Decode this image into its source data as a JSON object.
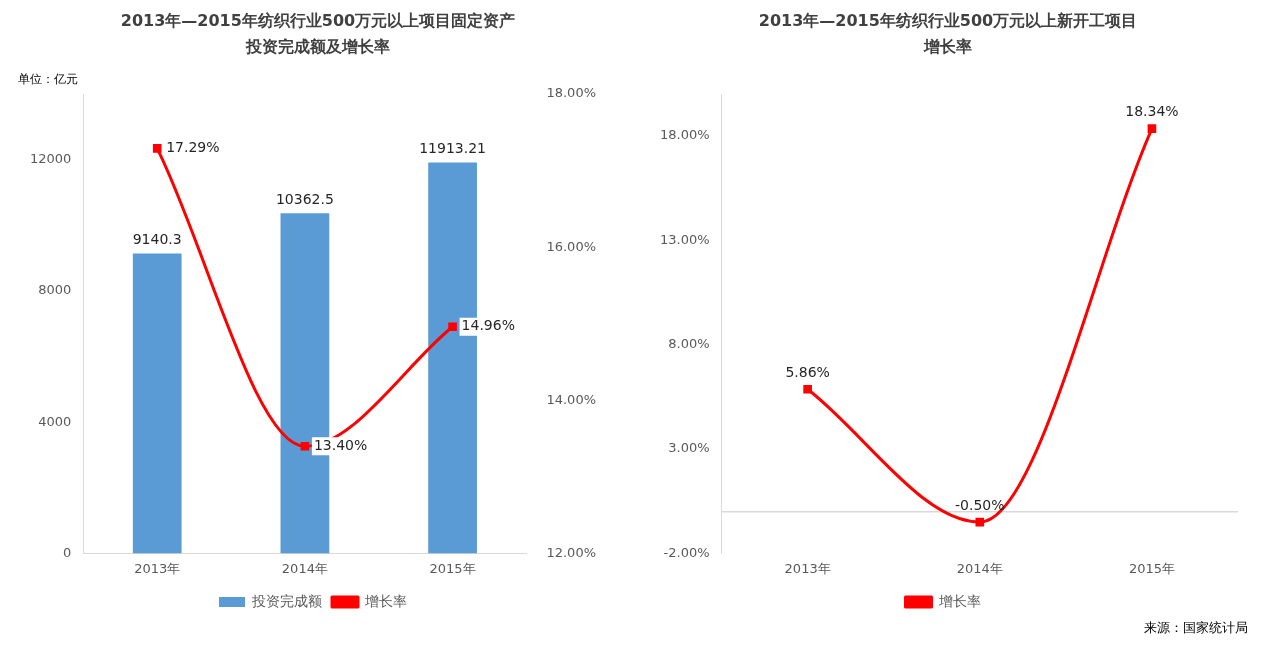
{
  "chart_data": [
    {
      "type": "bar",
      "title": "2013年—2015年纺织行业500万元以上项目固定资产投资完成额及增长率",
      "ylabel": "单位：亿元",
      "categories": [
        "2013年",
        "2014年",
        "2015年"
      ],
      "series": [
        {
          "name": "投资完成额",
          "type": "bar",
          "color": "#5b9bd5",
          "values": [
            9140.3,
            10362.5,
            11913.21
          ],
          "value_labels": [
            "9140.3",
            "10362.5",
            "11913.21"
          ]
        },
        {
          "name": "增长率",
          "type": "line",
          "axis": "y2",
          "color": "#ff0000",
          "values": [
            17.29,
            13.4,
            14.96
          ],
          "value_labels": [
            "17.29%",
            "13.40%",
            "14.96%"
          ]
        }
      ],
      "ylim": [
        0,
        14000
      ],
      "yticks": [
        0,
        4000,
        8000,
        12000
      ],
      "y2lim": [
        12,
        18
      ],
      "y2ticks": [
        {
          "value": 12,
          "label": "12.00%"
        },
        {
          "value": 14,
          "label": "14.00%"
        },
        {
          "value": 16,
          "label": "16.00%"
        },
        {
          "value": 18,
          "label": "18.00%"
        }
      ],
      "grid": false,
      "legend": "bottom",
      "marker": "square"
    },
    {
      "type": "line",
      "title": "2013年—2015年纺织行业500万元以上新开工项目增长率",
      "categories": [
        "2013年",
        "2014年",
        "2015年"
      ],
      "series": [
        {
          "name": "增长率",
          "color": "#ff0000",
          "values": [
            5.86,
            -0.5,
            18.34
          ],
          "value_labels": [
            "5.86%",
            "-0.50%",
            "18.34%"
          ]
        }
      ],
      "ylim": [
        -2,
        20
      ],
      "yticks": [
        {
          "value": -2,
          "label": "-2.00%"
        },
        {
          "value": 3,
          "label": "3.00%"
        },
        {
          "value": 8,
          "label": "8.00%"
        },
        {
          "value": 13,
          "label": "13.00%"
        },
        {
          "value": 18,
          "label": "18.00%"
        }
      ],
      "ref_lines": [
        {
          "axis": "y",
          "value": 0,
          "color": "#d9d9d9"
        }
      ],
      "grid": false,
      "legend": "bottom",
      "marker": "square",
      "annotations": [
        "来源：国家统计局"
      ]
    }
  ]
}
